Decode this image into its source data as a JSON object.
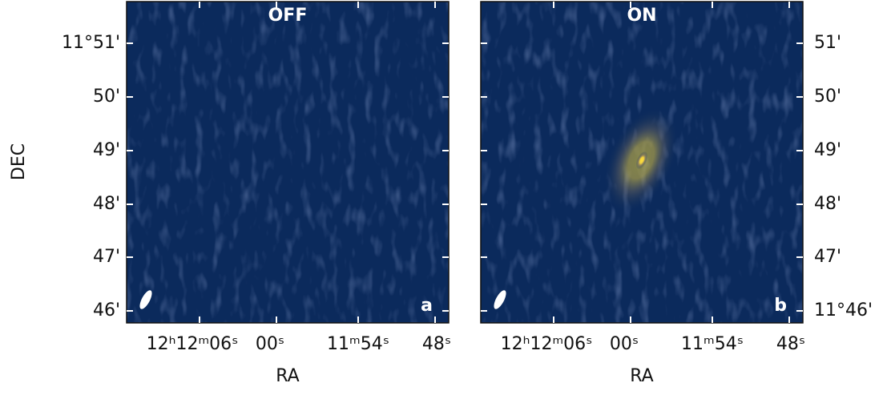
{
  "panels": [
    {
      "title": "OFF",
      "letter": "a",
      "x_label": "RA",
      "y_label": "DEC",
      "x_ticks": [
        "12ʰ12ᵐ06ˢ",
        "00ˢ",
        "11ᵐ54ˢ",
        "48ˢ"
      ],
      "y_ticks": [
        "11°51'",
        "50'",
        "49'",
        "48'",
        "47'",
        "46'"
      ]
    },
    {
      "title": "ON",
      "letter": "b",
      "x_label": "RA",
      "x_ticks": [
        "12ʰ12ᵐ06ˢ",
        "00ˢ",
        "11ᵐ54ˢ",
        "48ˢ"
      ],
      "y_ticks": [
        "51'",
        "50'",
        "49'",
        "48'",
        "47'",
        "11°46'"
      ]
    }
  ]
}
